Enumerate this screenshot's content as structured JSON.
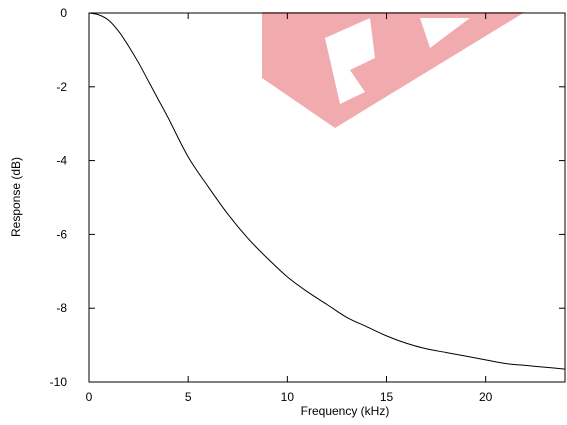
{
  "chart_data": {
    "type": "line",
    "xlabel": "Frequency (kHz)",
    "ylabel": "Response (dB)",
    "xlim": [
      0,
      24
    ],
    "ylim": [
      -10,
      0
    ],
    "x_ticks": [
      "0",
      "5",
      "10",
      "15",
      "20"
    ],
    "y_ticks": [
      "0",
      "-2",
      "-4",
      "-6",
      "-8",
      "-10"
    ],
    "x_tick_values": [
      0,
      5,
      10,
      15,
      20
    ],
    "y_tick_values": [
      0,
      -2,
      -4,
      -6,
      -8,
      -10
    ],
    "grid": false,
    "series": [
      {
        "color": "#000000",
        "x": [
          0,
          0.5,
          1,
          1.5,
          2,
          2.5,
          3,
          3.5,
          4,
          5,
          6,
          7,
          8,
          9,
          10,
          11,
          12,
          13,
          14,
          15,
          16,
          17,
          18,
          19,
          20,
          21,
          22,
          23,
          24
        ],
        "y": [
          0,
          -0.05,
          -0.2,
          -0.5,
          -0.9,
          -1.35,
          -1.85,
          -2.35,
          -2.85,
          -3.9,
          -4.7,
          -5.45,
          -6.1,
          -6.65,
          -7.15,
          -7.55,
          -7.9,
          -8.25,
          -8.5,
          -8.75,
          -8.95,
          -9.1,
          -9.2,
          -9.3,
          -9.4,
          -9.5,
          -9.55,
          -9.6,
          -9.65
        ]
      }
    ],
    "watermark": {
      "color": "#e8747a"
    }
  }
}
